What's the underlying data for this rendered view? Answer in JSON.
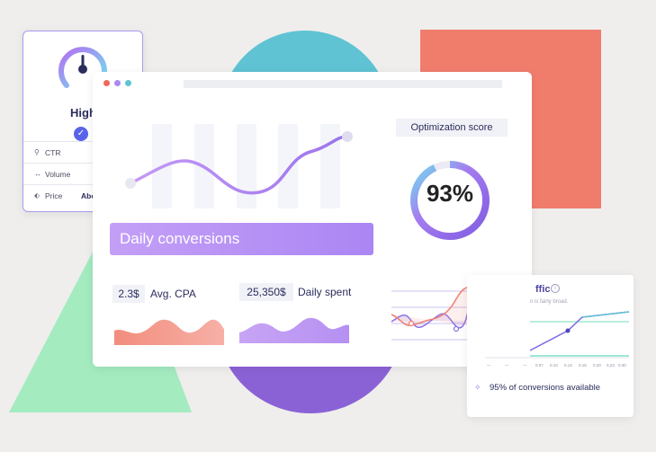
{
  "keyword_card": {
    "level": "High",
    "rows": [
      {
        "label": "CTR",
        "value": ""
      },
      {
        "label": "Volume",
        "value": ""
      },
      {
        "label": "Price",
        "value": "Abo"
      }
    ]
  },
  "dashboard": {
    "window_dots": [
      "#f0675a",
      "#a98bf6",
      "#5ec3d3"
    ],
    "daily_conversions_label": "Daily conversions",
    "optimization": {
      "label": "Optimization score",
      "value": "93%",
      "percent": 93
    },
    "avg_cpa": {
      "value": "2.3$",
      "label": "Avg. CPA"
    },
    "daily_spent": {
      "value": "25,350$",
      "label": "Daily spent"
    }
  },
  "traffic_card": {
    "title": "ffic",
    "subtitle": "n is fairly broad.",
    "ticks": [
      "0.07",
      "0.10",
      "0.13",
      "0.16",
      "0.20",
      "0.23",
      "0.30",
      "0.44"
    ],
    "note": "95% of conversions available"
  },
  "colors": {
    "accent_purple": "#a98bf6",
    "coral": "#f07c6c",
    "teal": "#5ec3d3",
    "green": "#a4ebc0"
  }
}
